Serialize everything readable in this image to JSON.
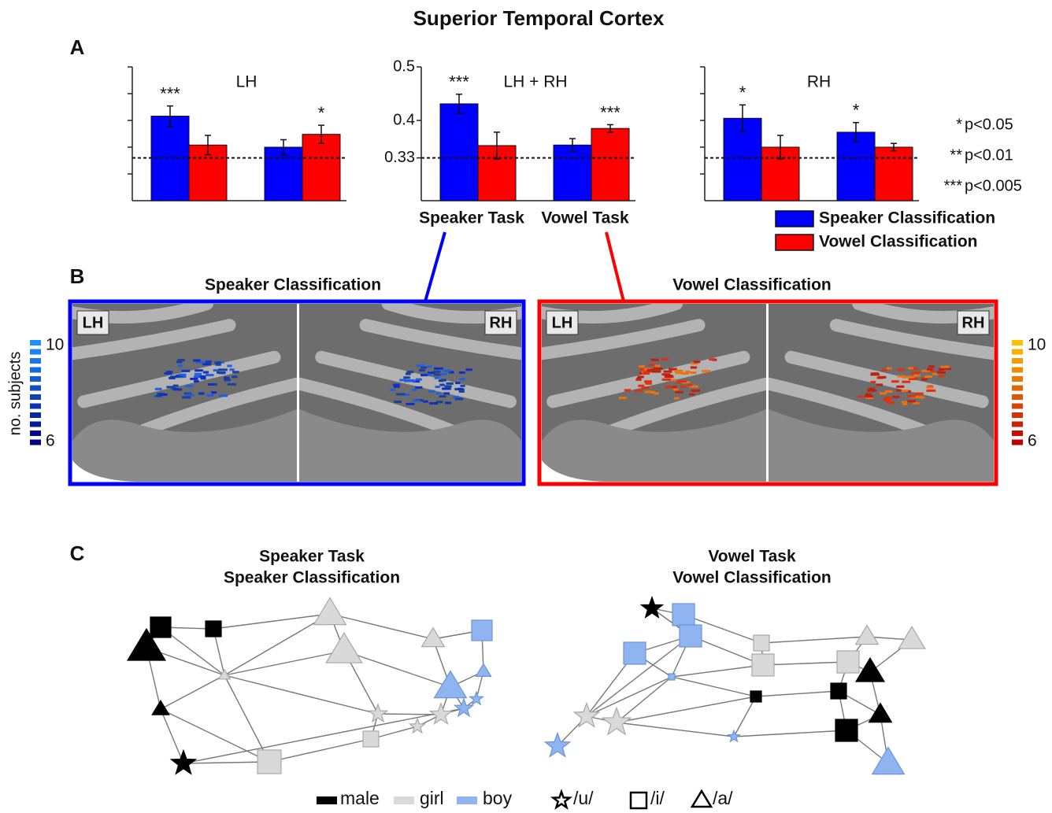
{
  "figure_title": "Superior Temporal Cortex",
  "panel_labels": [
    "A",
    "B",
    "C"
  ],
  "chart_data": [
    {
      "type": "bar",
      "title": "LH",
      "categories": [
        null,
        null
      ],
      "ylim": [
        0.25,
        0.5
      ],
      "yticks": [
        0.3,
        0.35,
        0.4,
        0.45,
        0.5
      ],
      "tick_labels": false,
      "chance": 0.33,
      "series": [
        {
          "color": "#0000ff",
          "values": [
            0.408,
            0.35
          ],
          "errors": [
            0.019,
            0.014
          ],
          "stars": [
            "***",
            null
          ]
        },
        {
          "color": "#ff0000",
          "values": [
            0.354,
            0.374
          ],
          "errors": [
            0.018,
            0.017
          ],
          "stars": [
            null,
            "*"
          ]
        }
      ]
    },
    {
      "type": "bar",
      "title": "LH + RH",
      "categories": [
        "Speaker Task",
        "Vowel Task"
      ],
      "ylim": [
        0.25,
        0.5
      ],
      "yticks": [
        0.33,
        0.4,
        0.5
      ],
      "tick_labels": true,
      "chance": 0.33,
      "series": [
        {
          "color": "#0000ff",
          "values": [
            0.431,
            0.354
          ],
          "errors": [
            0.018,
            0.012
          ],
          "stars": [
            "***",
            null
          ]
        },
        {
          "color": "#ff0000",
          "values": [
            0.353,
            0.385
          ],
          "errors": [
            0.025,
            0.007
          ],
          "stars": [
            null,
            "***"
          ]
        }
      ]
    },
    {
      "type": "bar",
      "title": "RH",
      "categories": [
        null,
        null
      ],
      "ylim": [
        0.25,
        0.5
      ],
      "yticks": [
        0.3,
        0.35,
        0.4,
        0.45,
        0.5
      ],
      "tick_labels": false,
      "chance": 0.33,
      "legend": true,
      "series": [
        {
          "name": "Speaker Classification",
          "color": "#0000ff",
          "values": [
            0.404,
            0.378
          ],
          "errors": [
            0.025,
            0.018
          ],
          "stars": [
            "*",
            "*"
          ]
        },
        {
          "name": "Vowel Classification",
          "color": "#ff0000",
          "values": [
            0.35,
            0.35
          ],
          "errors": [
            0.022,
            0.007
          ],
          "stars": [
            null,
            null
          ]
        }
      ]
    }
  ],
  "significance_key": [
    {
      "stars": "*",
      "label": "p<0.05"
    },
    {
      "stars": "**",
      "label": "p<0.01"
    },
    {
      "stars": "***",
      "label": "p<0.005"
    }
  ],
  "panel_b": {
    "maps": [
      {
        "title": "Speaker Classification",
        "color": "#0000ff",
        "hemispheres": [
          "LH",
          "RH"
        ]
      },
      {
        "title": "Vowel Classification",
        "color": "#ff0000",
        "hemispheres": [
          "LH",
          "RH"
        ]
      }
    ],
    "colorbars": [
      {
        "label": "no. subjects",
        "max": 10,
        "min": 6
      },
      {
        "max": 10,
        "min": 6
      }
    ]
  },
  "panel_c": {
    "graphs": [
      {
        "title": [
          "Speaker Task",
          "Speaker Classification"
        ]
      },
      {
        "title": [
          "Vowel Task",
          "Vowel Classification"
        ]
      }
    ],
    "legend": [
      "male",
      "girl",
      "boy",
      "/u/",
      "/i/",
      "/a/"
    ]
  }
}
